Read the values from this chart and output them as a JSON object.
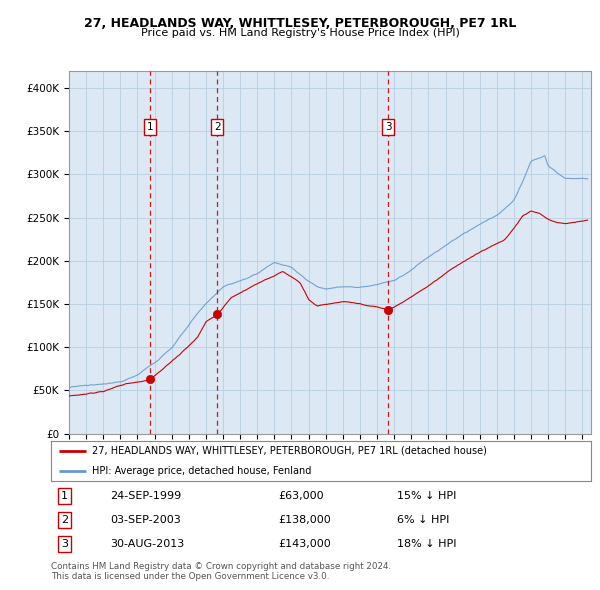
{
  "title": "27, HEADLANDS WAY, WHITTLESEY, PETERBOROUGH, PE7 1RL",
  "subtitle": "Price paid vs. HM Land Registry's House Price Index (HPI)",
  "ylim": [
    0,
    420000
  ],
  "xlim_start": 1995.0,
  "xlim_end": 2025.5,
  "plot_bg_color": "#dce9f5",
  "grid_color": "#b8cfe0",
  "red_line_color": "#cc0000",
  "blue_line_color": "#6699cc",
  "dashed_line_color": "#cc0000",
  "sale_points": [
    {
      "year": 1999.731,
      "price": 63000,
      "label": "1"
    },
    {
      "year": 2003.671,
      "price": 138000,
      "label": "2"
    },
    {
      "year": 2013.66,
      "price": 143000,
      "label": "3"
    }
  ],
  "ytick_labels": [
    "£0",
    "£50K",
    "£100K",
    "£150K",
    "£200K",
    "£250K",
    "£300K",
    "£350K",
    "£400K"
  ],
  "ytick_values": [
    0,
    50000,
    100000,
    150000,
    200000,
    250000,
    300000,
    350000,
    400000
  ],
  "legend_red_label": "27, HEADLANDS WAY, WHITTLESEY, PETERBOROUGH, PE7 1RL (detached house)",
  "legend_blue_label": "HPI: Average price, detached house, Fenland",
  "footer_line1": "Contains HM Land Registry data © Crown copyright and database right 2024.",
  "footer_line2": "This data is licensed under the Open Government Licence v3.0.",
  "table_rows": [
    {
      "num": "1",
      "date": "24-SEP-1999",
      "price": "£63,000",
      "note": "15% ↓ HPI"
    },
    {
      "num": "2",
      "date": "03-SEP-2003",
      "price": "£138,000",
      "note": "6% ↓ HPI"
    },
    {
      "num": "3",
      "date": "30-AUG-2013",
      "price": "£143,000",
      "note": "18% ↓ HPI"
    }
  ]
}
